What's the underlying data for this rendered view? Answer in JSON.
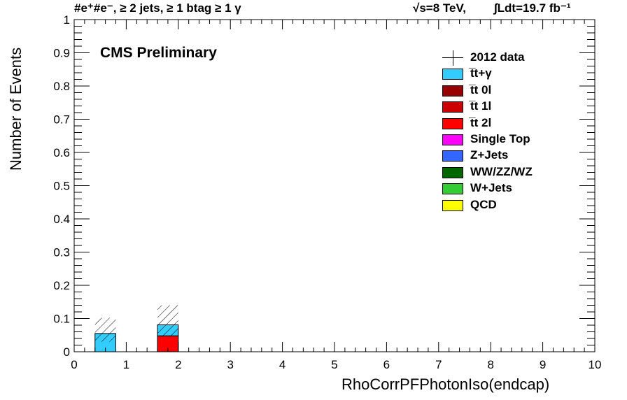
{
  "header": {
    "channel": "#e⁺#e⁻, ≥ 2 jets, ≥ 1 btag ≥ 1 γ",
    "energy": "√s=8 TeV,",
    "lumi": "∫Ldt=19.7 fb⁻¹"
  },
  "cms_label": "CMS Preliminary",
  "legend": [
    {
      "label": "2012 data",
      "type": "data"
    },
    {
      "label": "t̅t+γ",
      "color": "#33ccff"
    },
    {
      "label": "t̅t 0l",
      "color": "#990000"
    },
    {
      "label": "t̅t 1l",
      "color": "#cc0000"
    },
    {
      "label": "t̅t 2l",
      "color": "#ff0000"
    },
    {
      "label": "Single Top",
      "color": "#ff00ff"
    },
    {
      "label": "Z+Jets",
      "color": "#3366ff"
    },
    {
      "label": "WW/ZZ/WZ",
      "color": "#006600"
    },
    {
      "label": "W+Jets",
      "color": "#33cc33"
    },
    {
      "label": "QCD",
      "color": "#ffff00"
    }
  ],
  "chart_data": {
    "type": "bar",
    "stacked": true,
    "title": "",
    "xlabel": "RhoCorrPFPhotonIso(endcap)",
    "ylabel": "Number of Events",
    "xlim": [
      0,
      10
    ],
    "ylim": [
      0,
      1
    ],
    "x_ticks": [
      "0",
      "1",
      "2",
      "3",
      "4",
      "5",
      "6",
      "7",
      "8",
      "9",
      "10"
    ],
    "y_ticks": [
      "0",
      "0.1",
      "0.2",
      "0.3",
      "0.4",
      "0.5",
      "0.6",
      "0.7",
      "0.8",
      "0.9",
      "1"
    ],
    "bin_edges": [
      0.4,
      0.8,
      1.2,
      1.6,
      2.0,
      2.4
    ],
    "series": [
      {
        "name": "t̅t 2l",
        "color": "#ff0000",
        "values": [
          0,
          0,
          0,
          0.048,
          0
        ]
      },
      {
        "name": "t̅t+γ",
        "color": "#33ccff",
        "values": [
          0.055,
          0,
          0,
          0.033,
          0
        ]
      }
    ],
    "uncertainty": [
      {
        "total": 0.055,
        "down": 0.03,
        "up": 0.102
      },
      {
        "total": 0,
        "down": 0,
        "up": 0
      },
      {
        "total": 0,
        "down": 0,
        "up": 0
      },
      {
        "total": 0.081,
        "down": 0.045,
        "up": 0.14
      },
      {
        "total": 0,
        "down": 0,
        "up": 0
      }
    ],
    "grid": false,
    "legend_position": "top-right"
  }
}
